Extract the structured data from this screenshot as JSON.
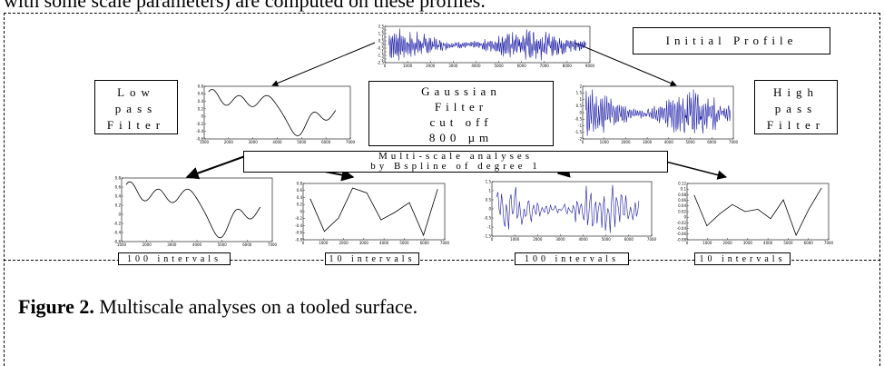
{
  "intro_text": "with some scale parameters) are computed on these profiles.",
  "labels": {
    "initial_profile": "Initial Profile",
    "low_pass": [
      "Low",
      "pass",
      "Filter"
    ],
    "high_pass": [
      "High",
      "pass",
      "Filter"
    ],
    "gaussian": [
      "Gaussian",
      "Filter",
      "cut off",
      "800 µm"
    ],
    "multiscale": [
      "Multi-scale analyses",
      "by Bspline of degree 1"
    ],
    "intervals": [
      "100 intervals",
      "10 intervals",
      "100 intervals",
      "10 intervals"
    ]
  },
  "caption": {
    "label": "Figure 2.",
    "text": " Multiscale analyses on a tooled surface."
  },
  "chart_data": [
    {
      "type": "line",
      "name": "initial-profile",
      "color": "#1a1aa6",
      "xticks": [
        "0",
        "1000",
        "2000",
        "3000",
        "4000",
        "5000",
        "6000",
        "7000",
        "8000",
        "9000"
      ],
      "yticks": [
        "2.5",
        "2",
        "1.5",
        "1",
        "0.5",
        "0",
        "-0.5",
        "-1",
        "-1.5",
        "-2",
        "-2.5"
      ]
    },
    {
      "type": "line",
      "name": "low-pass-profile",
      "color": "#000000",
      "xticks": [
        "1000",
        "2000",
        "3000",
        "4000",
        "5000",
        "6000",
        "7000"
      ],
      "yticks": [
        "0.8",
        "0.6",
        "0.4",
        "0.2",
        "0",
        "-0.2",
        "-0.4",
        "-0.6"
      ]
    },
    {
      "type": "line",
      "name": "high-pass-profile",
      "color": "#1a1aa6",
      "xticks": [
        "0",
        "1000",
        "2000",
        "3000",
        "4000",
        "5000",
        "6000",
        "7000"
      ],
      "yticks": [
        "2",
        "1.5",
        "1",
        "0.5",
        "0",
        "-0.5",
        "-1",
        "-1.5",
        "-2"
      ]
    },
    {
      "type": "line",
      "name": "lowpass-100-intervals",
      "color": "#000000",
      "xticks": [
        "1000",
        "2000",
        "3000",
        "4000",
        "5000",
        "6000",
        "7000"
      ],
      "yticks": [
        "0.8",
        "0.6",
        "0.4",
        "0.2",
        "0",
        "-0.2",
        "-0.4",
        "-0.6"
      ]
    },
    {
      "type": "line",
      "name": "lowpass-10-intervals",
      "color": "#000000",
      "x": [
        0,
        700,
        1400,
        2100,
        2800,
        3500,
        4200,
        4900,
        5600,
        6300
      ],
      "y": [
        0.3,
        -0.55,
        -0.2,
        0.58,
        0.45,
        -0.25,
        -0.05,
        0.2,
        -0.65,
        0.55
      ],
      "xticks": [
        "0",
        "1000",
        "2000",
        "3000",
        "4000",
        "5000",
        "6000",
        "7000"
      ],
      "yticks": [
        "0.8",
        "0.6",
        "0.4",
        "0.2",
        "0",
        "-0.2",
        "-0.4",
        "-0.6",
        "-0.8"
      ]
    },
    {
      "type": "line",
      "name": "highpass-100-intervals",
      "color": "#1a1aa6",
      "xticks": [
        "0",
        "1000",
        "2000",
        "3000",
        "4000",
        "5000",
        "6000",
        "7000"
      ],
      "yticks": [
        "1.5",
        "1",
        "0.5",
        "0",
        "-0.5",
        "-1",
        "-1.5"
      ]
    },
    {
      "type": "line",
      "name": "highpass-10-intervals",
      "color": "#000000",
      "x": [
        0,
        700,
        1400,
        2100,
        2800,
        3500,
        4200,
        4900,
        5600,
        6300,
        7000
      ],
      "y": [
        0.08,
        -0.05,
        0.0,
        0.04,
        0.01,
        0.02,
        -0.02,
        0.06,
        -0.09,
        0.02,
        0.11
      ],
      "xticks": [
        "0",
        "1000",
        "2000",
        "3000",
        "4000",
        "5000",
        "6000",
        "7000"
      ],
      "yticks": [
        "0.12",
        "0.1",
        "0.08",
        "0.06",
        "0.04",
        "0.02",
        "0",
        "-0.02",
        "-0.04",
        "-0.06",
        "-0.08"
      ]
    }
  ]
}
